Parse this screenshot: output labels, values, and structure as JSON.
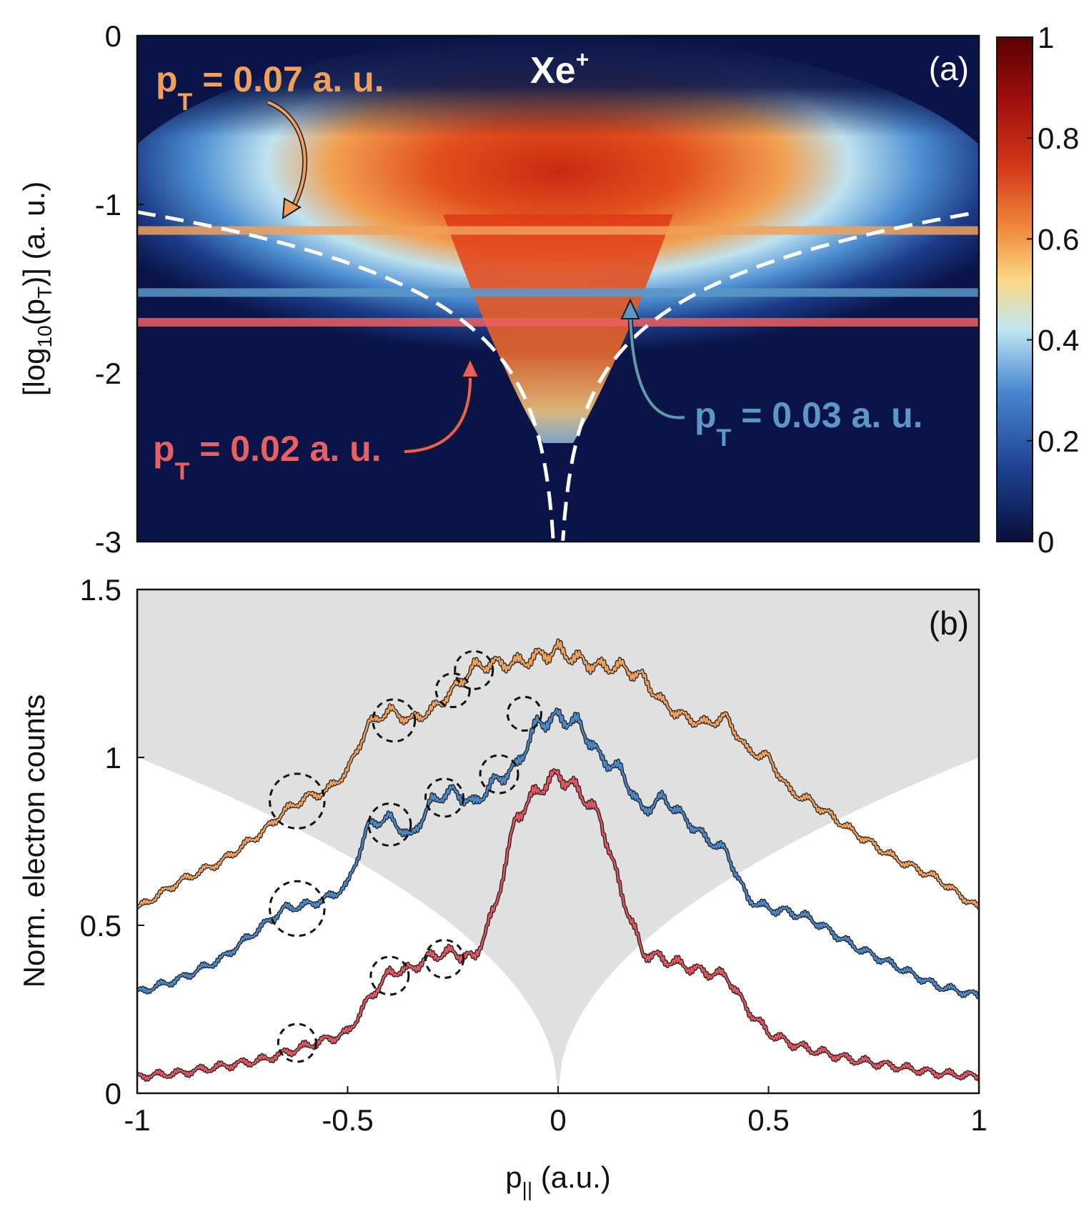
{
  "chart_data": [
    {
      "panel": "a",
      "type": "heatmap",
      "panel_label": "(a)",
      "title": "Xe",
      "title_superscript": "+",
      "ylabel_parts": [
        "[log",
        "10",
        "(p",
        "T",
        ")] (a. u.)"
      ],
      "ylim": [
        -3,
        0
      ],
      "xlim": [
        -1,
        1
      ],
      "yticks": [
        "0",
        "-1",
        "-2",
        "-3"
      ],
      "ytick_values": [
        0,
        -1,
        -2,
        -3
      ],
      "colorbar": {
        "range": [
          0,
          1
        ],
        "ticks": [
          "1",
          "0.8",
          "0.6",
          "0.4",
          "0.2",
          "0"
        ],
        "tick_values": [
          1,
          0.8,
          0.6,
          0.4,
          0.2,
          0
        ],
        "colors": [
          "#0a0e3c",
          "#1c3f8e",
          "#4a88d0",
          "#bfe6f2",
          "#fbd784",
          "#f08a3c",
          "#d43a1a",
          "#9e0d0d",
          "#5a0202"
        ]
      },
      "cuts": [
        {
          "pT": 0.07,
          "log10": -1.155,
          "label_main": "p",
          "label_sub": "T",
          "label_value": " = 0.07 a. u.",
          "color": "#f0a05a"
        },
        {
          "pT": 0.03,
          "log10": -1.523,
          "label_main": "p",
          "label_sub": "T",
          "label_value": " = 0.03 a. u.",
          "color": "#5b98c8"
        },
        {
          "pT": 0.02,
          "log10": -1.699,
          "label_main": "p",
          "label_sub": "T",
          "label_value": " = 0.02 a. u.",
          "color": "#e86060"
        }
      ],
      "boundary_curve": {
        "description_y": "y = log10(c * |x|)",
        "c": 0.09,
        "style": "white dashed"
      }
    },
    {
      "panel": "b",
      "type": "line",
      "panel_label": "(b)",
      "xlabel_parts": [
        "p",
        "||",
        " (a.u.)"
      ],
      "ylabel": "Norm. electron counts",
      "xlim": [
        -1,
        1
      ],
      "ylim": [
        0,
        1.5
      ],
      "xticks": [
        "-1",
        "-0.5",
        "0",
        "0.5",
        "1"
      ],
      "xtick_values": [
        -1,
        -0.5,
        0,
        0.5,
        1
      ],
      "yticks": [
        "0",
        "0.5",
        "1",
        "1.5"
      ],
      "ytick_values": [
        0,
        0.5,
        1,
        1.5
      ],
      "shaded_region": {
        "shape": "y >= sqrt(|x|)",
        "color": "#e0e0e0"
      },
      "series": [
        {
          "name": "pT = 0.07 a. u.",
          "color": "#f0a05a",
          "x": [
            -1,
            -0.9,
            -0.8,
            -0.7,
            -0.65,
            -0.6,
            -0.55,
            -0.5,
            -0.45,
            -0.4,
            -0.35,
            -0.3,
            -0.25,
            -0.2,
            -0.15,
            -0.1,
            -0.05,
            0,
            0.05,
            0.1,
            0.15,
            0.2,
            0.25,
            0.3,
            0.35,
            0.4,
            0.45,
            0.5,
            0.55,
            0.6,
            0.7,
            0.8,
            0.9,
            1
          ],
          "y": [
            0.55,
            0.63,
            0.69,
            0.78,
            0.84,
            0.88,
            0.9,
            0.96,
            1.1,
            1.14,
            1.11,
            1.14,
            1.2,
            1.27,
            1.28,
            1.28,
            1.3,
            1.32,
            1.29,
            1.27,
            1.27,
            1.24,
            1.16,
            1.12,
            1.1,
            1.12,
            1.02,
            1.0,
            0.9,
            0.87,
            0.78,
            0.7,
            0.64,
            0.55
          ]
        },
        {
          "name": "pT = 0.03 a. u.",
          "color": "#4a88c8",
          "x": [
            -1,
            -0.9,
            -0.8,
            -0.7,
            -0.65,
            -0.6,
            -0.55,
            -0.5,
            -0.45,
            -0.4,
            -0.35,
            -0.3,
            -0.25,
            -0.2,
            -0.15,
            -0.1,
            -0.05,
            0,
            0.05,
            0.1,
            0.15,
            0.2,
            0.25,
            0.3,
            0.35,
            0.4,
            0.45,
            0.5,
            0.55,
            0.6,
            0.7,
            0.8,
            0.9,
            1
          ],
          "y": [
            0.3,
            0.34,
            0.4,
            0.5,
            0.55,
            0.56,
            0.58,
            0.62,
            0.8,
            0.82,
            0.76,
            0.87,
            0.9,
            0.86,
            0.93,
            0.97,
            1.1,
            1.12,
            1.1,
            1.0,
            0.96,
            0.84,
            0.88,
            0.82,
            0.76,
            0.72,
            0.58,
            0.55,
            0.54,
            0.52,
            0.44,
            0.38,
            0.32,
            0.29
          ]
        },
        {
          "name": "pT = 0.02 a. u.",
          "color": "#e05560",
          "x": [
            -1,
            -0.9,
            -0.8,
            -0.7,
            -0.65,
            -0.6,
            -0.55,
            -0.5,
            -0.45,
            -0.4,
            -0.35,
            -0.3,
            -0.25,
            -0.2,
            -0.15,
            -0.1,
            -0.05,
            0,
            0.05,
            0.1,
            0.15,
            0.2,
            0.25,
            0.3,
            0.35,
            0.4,
            0.45,
            0.5,
            0.55,
            0.6,
            0.7,
            0.8,
            0.9,
            1
          ],
          "y": [
            0.05,
            0.06,
            0.08,
            0.1,
            0.12,
            0.14,
            0.16,
            0.18,
            0.28,
            0.36,
            0.37,
            0.41,
            0.42,
            0.4,
            0.55,
            0.82,
            0.9,
            0.95,
            0.9,
            0.82,
            0.6,
            0.42,
            0.4,
            0.38,
            0.36,
            0.35,
            0.25,
            0.18,
            0.15,
            0.13,
            0.1,
            0.08,
            0.06,
            0.05
          ]
        }
      ],
      "annotation_circles": [
        {
          "x": -0.62,
          "y": 0.87,
          "r": 0.065
        },
        {
          "x": -0.39,
          "y": 1.11,
          "r": 0.05
        },
        {
          "x": -0.25,
          "y": 1.2,
          "r": 0.04
        },
        {
          "x": -0.2,
          "y": 1.26,
          "r": 0.045
        },
        {
          "x": -0.08,
          "y": 1.13,
          "r": 0.04
        },
        {
          "x": -0.62,
          "y": 0.55,
          "r": 0.065
        },
        {
          "x": -0.4,
          "y": 0.8,
          "r": 0.05
        },
        {
          "x": -0.27,
          "y": 0.88,
          "r": 0.045
        },
        {
          "x": -0.14,
          "y": 0.95,
          "r": 0.045
        },
        {
          "x": -0.4,
          "y": 0.35,
          "r": 0.045
        },
        {
          "x": -0.27,
          "y": 0.4,
          "r": 0.045
        },
        {
          "x": -0.62,
          "y": 0.15,
          "r": 0.045
        }
      ]
    }
  ]
}
